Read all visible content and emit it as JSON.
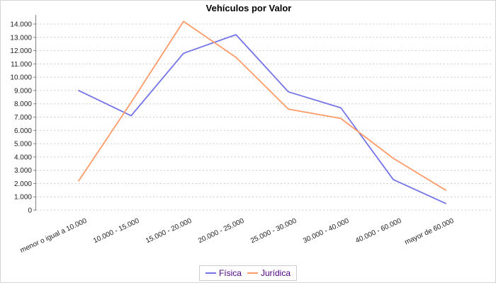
{
  "chart_data": {
    "type": "line",
    "title": "Vehículos por Valor",
    "categories": [
      "menor o igual a 10.000",
      "10.000 - 15.000",
      "15.000 - 20.000",
      "20.000 - 25.000",
      "25.000 - 30.000",
      "30.000 - 40.000",
      "40.000 - 60.000",
      "mayor de 60.000"
    ],
    "series": [
      {
        "name": "Física",
        "color": "#7474e8",
        "values": [
          9000,
          7100,
          11800,
          13200,
          8900,
          7700,
          2300,
          500
        ]
      },
      {
        "name": "Jurídica",
        "color": "#ff9b69",
        "values": [
          2200,
          8100,
          14200,
          11500,
          7600,
          6900,
          3900,
          1500
        ]
      }
    ],
    "xlabel": "",
    "ylabel": "",
    "ylim": [
      0,
      14000
    ],
    "ytick_step": 1000,
    "ytick_labels": [
      "0",
      "1.000",
      "2.000",
      "3.000",
      "4.000",
      "5.000",
      "6.000",
      "7.000",
      "8.000",
      "9.000",
      "10.000",
      "11.000",
      "12.000",
      "13.000",
      "14.000"
    ],
    "grid": true,
    "legend_position": "bottom",
    "colors": {
      "axis": "#808080",
      "gridline": "#cccccc",
      "tick_label": "#222222",
      "legend_text": "#4b0082",
      "title_text": "#000000"
    }
  }
}
